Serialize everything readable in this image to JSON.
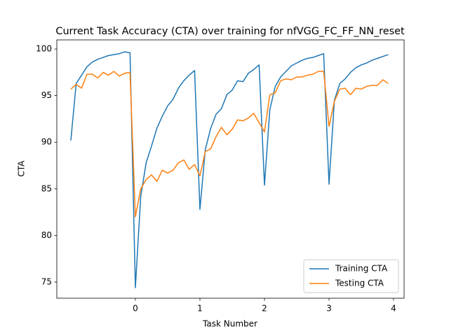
{
  "chart_data": {
    "type": "line",
    "title": "Current Task Accuracy (CTA) over training for nfVGG_FC_FF_NN_reset",
    "xlabel": "Task Number",
    "ylabel": "CTA",
    "x": [
      -1,
      -0.917,
      -0.833,
      -0.75,
      -0.667,
      -0.583,
      -0.5,
      -0.417,
      -0.333,
      -0.25,
      -0.167,
      -0.083,
      0,
      0.083,
      0.167,
      0.25,
      0.333,
      0.417,
      0.5,
      0.583,
      0.667,
      0.75,
      0.833,
      0.917,
      1,
      1.083,
      1.167,
      1.25,
      1.333,
      1.417,
      1.5,
      1.583,
      1.667,
      1.75,
      1.833,
      1.917,
      2,
      2.083,
      2.167,
      2.25,
      2.333,
      2.417,
      2.5,
      2.583,
      2.667,
      2.75,
      2.833,
      2.917,
      3,
      3.083,
      3.167,
      3.25,
      3.333,
      3.417,
      3.5,
      3.583,
      3.667,
      3.75,
      3.833,
      3.917
    ],
    "series": [
      {
        "name": "Training CTA",
        "color": "#1f77b4",
        "values": [
          90.2,
          96.3,
          97.2,
          98.1,
          98.6,
          98.9,
          99.1,
          99.3,
          99.4,
          99.5,
          99.7,
          99.6,
          74.4,
          84.2,
          87.8,
          89.6,
          91.5,
          92.8,
          93.9,
          94.6,
          95.8,
          96.6,
          97.2,
          97.7,
          82.8,
          89.2,
          91.5,
          93.0,
          93.6,
          95.1,
          95.6,
          96.6,
          96.5,
          97.4,
          97.8,
          98.3,
          85.4,
          93.5,
          96.0,
          97.0,
          97.6,
          98.2,
          98.5,
          98.8,
          99.0,
          99.1,
          99.3,
          99.5,
          85.5,
          94.5,
          96.3,
          96.8,
          97.5,
          98.0,
          98.3,
          98.5,
          98.8,
          99.0,
          99.2,
          99.4
        ]
      },
      {
        "name": "Testing CTA",
        "color": "#ff7f0e",
        "values": [
          95.7,
          96.2,
          95.8,
          97.3,
          97.3,
          96.9,
          97.5,
          97.2,
          97.6,
          97.1,
          97.4,
          97.5,
          82.0,
          85.0,
          86.0,
          86.5,
          85.8,
          87.0,
          86.7,
          87.0,
          87.8,
          88.1,
          87.1,
          87.6,
          86.4,
          89.0,
          89.3,
          90.6,
          91.6,
          90.8,
          91.4,
          92.4,
          92.3,
          92.6,
          93.1,
          92.1,
          91.1,
          95.1,
          95.3,
          96.6,
          96.8,
          96.7,
          97.0,
          97.0,
          97.2,
          97.3,
          97.6,
          97.6,
          91.7,
          94.4,
          95.7,
          95.8,
          95.1,
          95.8,
          95.7,
          96.0,
          96.1,
          96.1,
          96.7,
          96.3
        ]
      }
    ],
    "xlim": [
      -1.217,
      4.163
    ],
    "ylim": [
      73.27,
      100.98
    ],
    "xticks": [
      0,
      1,
      2,
      3,
      4
    ],
    "yticks": [
      75,
      80,
      85,
      90,
      95,
      100
    ],
    "legend": "lower right"
  }
}
